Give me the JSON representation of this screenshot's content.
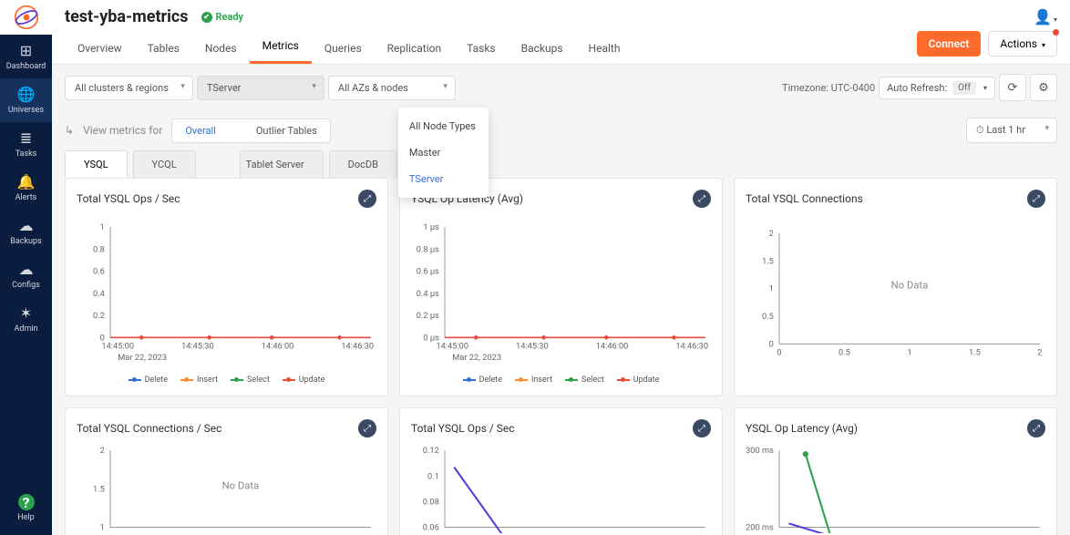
{
  "sidebar": {
    "items": [
      {
        "icon": "⊞",
        "label": "Dashboard"
      },
      {
        "icon": "🌐",
        "label": "Universes"
      },
      {
        "icon": "≣",
        "label": "Tasks"
      },
      {
        "icon": "🔔",
        "label": "Alerts"
      },
      {
        "icon": "☁",
        "label": "Backups"
      },
      {
        "icon": "☁",
        "label": "Configs"
      },
      {
        "icon": "✶",
        "label": "Admin"
      }
    ],
    "help": {
      "icon": "?",
      "label": "Help"
    }
  },
  "header": {
    "title": "test-yba-metrics",
    "status": "Ready",
    "connect": "Connect",
    "actions": "Actions"
  },
  "tabs": [
    "Overview",
    "Tables",
    "Nodes",
    "Metrics",
    "Queries",
    "Replication",
    "Tasks",
    "Backups",
    "Health"
  ],
  "active_tab": "Metrics",
  "filters": {
    "cluster": "All clusters & regions",
    "server": "TServer",
    "az": "All AZs & nodes",
    "timezone_label": "Timezone:",
    "timezone": "UTC-0400",
    "auto_refresh_label": "Auto Refresh:",
    "auto_refresh_value": "Off"
  },
  "dropdown": {
    "items": [
      "All Node Types",
      "Master",
      "TServer"
    ],
    "selected": "TServer"
  },
  "filters2": {
    "prefix": "↳",
    "label": "View metrics for",
    "overall": "Overall",
    "outlier": "Outlier Tables",
    "range": "Last 1 hr"
  },
  "subtabs": [
    "YSQL",
    "YCQL",
    "",
    "Tablet Server",
    "DocDB"
  ],
  "active_subtab": "YSQL",
  "charts": {
    "row1": [
      {
        "title": "Total YSQL Ops / Sec",
        "type": "line",
        "ylabels": [
          "1",
          "0.8",
          "0.6",
          "0.4",
          "0.2",
          "0"
        ],
        "xlabels": [
          "14:45:00",
          "14:45:30",
          "14:46:00",
          "14:46:30"
        ],
        "date": "Mar 22, 2023",
        "series": [
          {
            "name": "Delete",
            "color": "#3670d6"
          },
          {
            "name": "Insert",
            "color": "#ff8c2c"
          },
          {
            "name": "Select",
            "color": "#2aa14a"
          },
          {
            "name": "Update",
            "color": "#e74c3c"
          }
        ],
        "flat_zero": true
      },
      {
        "title": "YSQL Op Latency (Avg)",
        "type": "line",
        "ylabels": [
          "1 µs",
          "0.8 µs",
          "0.6 µs",
          "0.4 µs",
          "0.2 µs",
          "0 µs"
        ],
        "xlabels": [
          "14:45:00",
          "14:45:30",
          "14:46:00",
          "14:46:30"
        ],
        "date": "Mar 22, 2023",
        "series": [
          {
            "name": "Delete",
            "color": "#3670d6"
          },
          {
            "name": "Insert",
            "color": "#ff8c2c"
          },
          {
            "name": "Select",
            "color": "#2aa14a"
          },
          {
            "name": "Update",
            "color": "#e74c3c"
          }
        ],
        "flat_zero": true
      },
      {
        "title": "Total YSQL Connections",
        "type": "empty",
        "ylabels": [
          "2",
          "1.5",
          "1",
          "0.5",
          "0"
        ],
        "xlabels": [
          "0",
          "0.5",
          "1",
          "1.5",
          "2"
        ],
        "no_data": "No Data"
      }
    ],
    "row2": [
      {
        "title": "Total YSQL Connections / Sec",
        "type": "empty",
        "ylabels": [
          "2",
          "1.5",
          "1"
        ],
        "no_data": "No Data"
      },
      {
        "title": "Total YSQL Ops / Sec",
        "type": "partial",
        "ylabels": [
          "0.12",
          "0.1",
          "0.08",
          "0.06"
        ],
        "line_color": "#5b3bdb"
      },
      {
        "title": "YSQL Op Latency (Avg)",
        "type": "partial2",
        "ylabels": [
          "300 ms",
          "200 ms"
        ],
        "line_colors": [
          "#2aa14a",
          "#5b3bdb"
        ]
      }
    ]
  }
}
